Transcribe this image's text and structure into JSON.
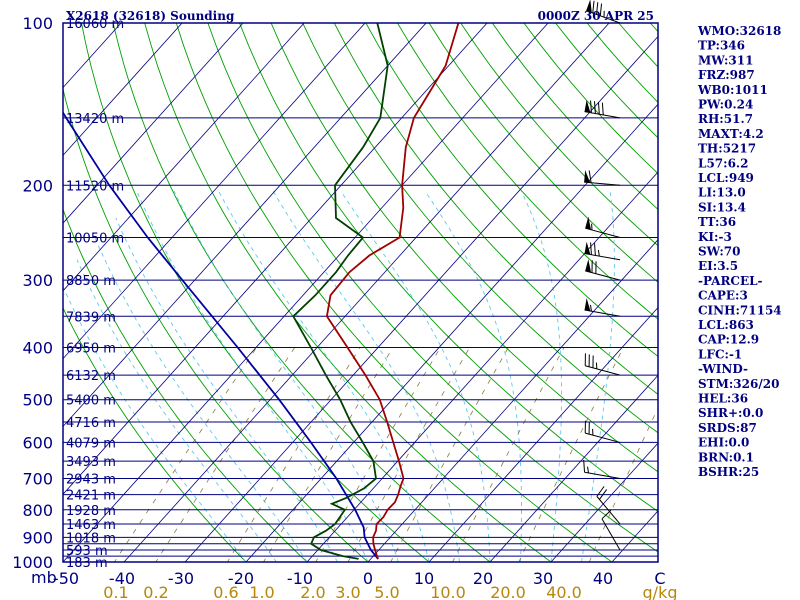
{
  "chart_data": {
    "type": "skew-t",
    "title": "X2618 (32618) Sounding",
    "time": "0000Z 30 APR 25",
    "pressure_labels": [
      "100",
      "200",
      "300",
      "400",
      "500",
      "600",
      "700",
      "800",
      "900",
      "1000"
    ],
    "pressure_unit": "mb",
    "pressure_levels": [
      100,
      150,
      200,
      250,
      300,
      350,
      400,
      450,
      500,
      550,
      600,
      650,
      700,
      750,
      800,
      850,
      900,
      925,
      950,
      975,
      1000
    ],
    "temperature_ticks": [
      "-50",
      "-40",
      "-30",
      "-20",
      "-10",
      "0",
      "10",
      "20",
      "30",
      "40",
      "C"
    ],
    "temperature_values": [
      -50,
      -40,
      -30,
      -20,
      -10,
      0,
      10,
      20,
      30,
      40
    ],
    "mixing_ratio_labels": [
      "0.1",
      "0.2",
      "0.6",
      "1.0",
      "2.0",
      "3.0",
      "5.0",
      "10.0",
      "20.0",
      "40.0",
      "g/kg"
    ],
    "height_labels": [
      {
        "p": 100,
        "label": "16060 m"
      },
      {
        "p": 150,
        "label": "13420 m"
      },
      {
        "p": 200,
        "label": "11520 m"
      },
      {
        "p": 250,
        "label": "10050 m"
      },
      {
        "p": 300,
        "label": "8850 m"
      },
      {
        "p": 350,
        "label": "7839 m"
      },
      {
        "p": 400,
        "label": "6950 m"
      },
      {
        "p": 450,
        "label": "6132 m"
      },
      {
        "p": 500,
        "label": "5400 m"
      },
      {
        "p": 550,
        "label": "4716 m"
      },
      {
        "p": 600,
        "label": "4079 m"
      },
      {
        "p": 650,
        "label": "3493 m"
      },
      {
        "p": 700,
        "label": "2943 m"
      },
      {
        "p": 750,
        "label": "2421 m"
      },
      {
        "p": 800,
        "label": "1928 m"
      },
      {
        "p": 850,
        "label": "1463 m"
      },
      {
        "p": 900,
        "label": "1018 m"
      },
      {
        "p": 950,
        "label": "593 m"
      },
      {
        "p": 1000,
        "label": "183 m"
      }
    ],
    "temperature_profile": [
      {
        "p": 987,
        "t": 1.2
      },
      {
        "p": 975,
        "t": 0.6
      },
      {
        "p": 950,
        "t": -0.6
      },
      {
        "p": 925,
        "t": -1.8
      },
      {
        "p": 900,
        "t": -2.8
      },
      {
        "p": 875,
        "t": -3.3
      },
      {
        "p": 850,
        "t": -4.2
      },
      {
        "p": 825,
        "t": -4.1
      },
      {
        "p": 800,
        "t": -4.5
      },
      {
        "p": 775,
        "t": -4.4
      },
      {
        "p": 750,
        "t": -5.0
      },
      {
        "p": 725,
        "t": -5.8
      },
      {
        "p": 700,
        "t": -6.5
      },
      {
        "p": 650,
        "t": -9.8
      },
      {
        "p": 600,
        "t": -13.5
      },
      {
        "p": 550,
        "t": -17.5
      },
      {
        "p": 500,
        "t": -22.0
      },
      {
        "p": 450,
        "t": -28.0
      },
      {
        "p": 400,
        "t": -35.0
      },
      {
        "p": 350,
        "t": -43.0
      },
      {
        "p": 320,
        "t": -45.5
      },
      {
        "p": 290,
        "t": -45.8
      },
      {
        "p": 270,
        "t": -45.0
      },
      {
        "p": 250,
        "t": -42.7
      },
      {
        "p": 220,
        "t": -46.5
      },
      {
        "p": 200,
        "t": -50.0
      },
      {
        "p": 170,
        "t": -55.0
      },
      {
        "p": 150,
        "t": -58.0
      },
      {
        "p": 120,
        "t": -60.5
      },
      {
        "p": 100,
        "t": -64.7
      }
    ],
    "dewpoint_profile": [
      {
        "p": 987,
        "t": -2.0
      },
      {
        "p": 975,
        "t": -5.0
      },
      {
        "p": 950,
        "t": -9.5
      },
      {
        "p": 925,
        "t": -12.0
      },
      {
        "p": 900,
        "t": -12.5
      },
      {
        "p": 875,
        "t": -11.5
      },
      {
        "p": 850,
        "t": -11.0
      },
      {
        "p": 800,
        "t": -11.5
      },
      {
        "p": 780,
        "t": -14.5
      },
      {
        "p": 760,
        "t": -13.0
      },
      {
        "p": 730,
        "t": -11.5
      },
      {
        "p": 700,
        "t": -11.0
      },
      {
        "p": 650,
        "t": -14.0
      },
      {
        "p": 600,
        "t": -18.5
      },
      {
        "p": 550,
        "t": -23.5
      },
      {
        "p": 500,
        "t": -28.5
      },
      {
        "p": 450,
        "t": -34.5
      },
      {
        "p": 400,
        "t": -41.0
      },
      {
        "p": 350,
        "t": -48.5
      },
      {
        "p": 320,
        "t": -48.0
      },
      {
        "p": 290,
        "t": -48.0
      },
      {
        "p": 270,
        "t": -48.5
      },
      {
        "p": 250,
        "t": -48.7
      },
      {
        "p": 230,
        "t": -56.0
      },
      {
        "p": 200,
        "t": -61.0
      },
      {
        "p": 170,
        "t": -62.0
      },
      {
        "p": 150,
        "t": -63.5
      },
      {
        "p": 120,
        "t": -70.0
      },
      {
        "p": 100,
        "t": -78.0
      }
    ],
    "parcel_path": [
      {
        "p": 987,
        "t": 1.2
      },
      {
        "p": 950,
        "t": -1.3
      },
      {
        "p": 900,
        "t": -4.2
      },
      {
        "p": 863,
        "t": -5.8
      },
      {
        "p": 800,
        "t": -9.8
      },
      {
        "p": 700,
        "t": -17.5
      },
      {
        "p": 600,
        "t": -27.0
      },
      {
        "p": 500,
        "t": -38.5
      },
      {
        "p": 400,
        "t": -53.0
      },
      {
        "p": 300,
        "t": -72.0
      },
      {
        "p": 250,
        "t": -84.0
      },
      {
        "p": 200,
        "t": -98.0
      },
      {
        "p": 150,
        "t": -115.0
      },
      {
        "p": 120,
        "t": -128.0
      }
    ],
    "wind_barbs": [
      {
        "p": 100,
        "dir": 290,
        "spd": 85
      },
      {
        "p": 150,
        "dir": 280,
        "spd": 90
      },
      {
        "p": 200,
        "dir": 275,
        "spd": 60
      },
      {
        "p": 250,
        "dir": 285,
        "spd": 55
      },
      {
        "p": 275,
        "dir": 280,
        "spd": 75
      },
      {
        "p": 300,
        "dir": 285,
        "spd": 70
      },
      {
        "p": 350,
        "dir": 280,
        "spd": 55
      },
      {
        "p": 450,
        "dir": 285,
        "spd": 35
      },
      {
        "p": 600,
        "dir": 285,
        "spd": 25
      },
      {
        "p": 700,
        "dir": 280,
        "spd": 15
      },
      {
        "p": 850,
        "dir": 320,
        "spd": 20
      },
      {
        "p": 950,
        "dir": 330,
        "spd": 10
      }
    ],
    "stats": [
      "WMO:32618",
      "TP:346",
      "MW:311",
      "FRZ:987",
      "WB0:1011",
      "PW:0.24",
      "RH:51.7",
      "MAXT:4.2",
      "TH:5217",
      "L57:6.2",
      "LCL:949",
      "LI:13.0",
      "SI:13.4",
      "TT:36",
      "KI:-3",
      "SW:70",
      "EI:3.5",
      "-PARCEL-",
      "CAPE:3",
      "CINH:71154",
      "LCL:863",
      "CAP:12.9",
      "LFC:-1",
      "-WIND-",
      "STM:326/20",
      "HEL:36",
      "SHR+:0.0",
      "SRDS:87",
      "EHI:0.0",
      "BRN:0.1",
      "BSHR:25"
    ],
    "colors": {
      "background": "#ffffff",
      "frame": "#000080",
      "isobar": "#000080",
      "isotherm": "#000080",
      "dry_adiabat": "#00a000",
      "moist_adiabat": "#5ec8ee",
      "mixing_ratio": "#8b7a3a",
      "temperature": "#a00000",
      "dewpoint": "#004000",
      "parcel": "#0000a0",
      "barb": "#000000",
      "axis_text": "#000080",
      "mixing_text": "#b8860b"
    }
  }
}
